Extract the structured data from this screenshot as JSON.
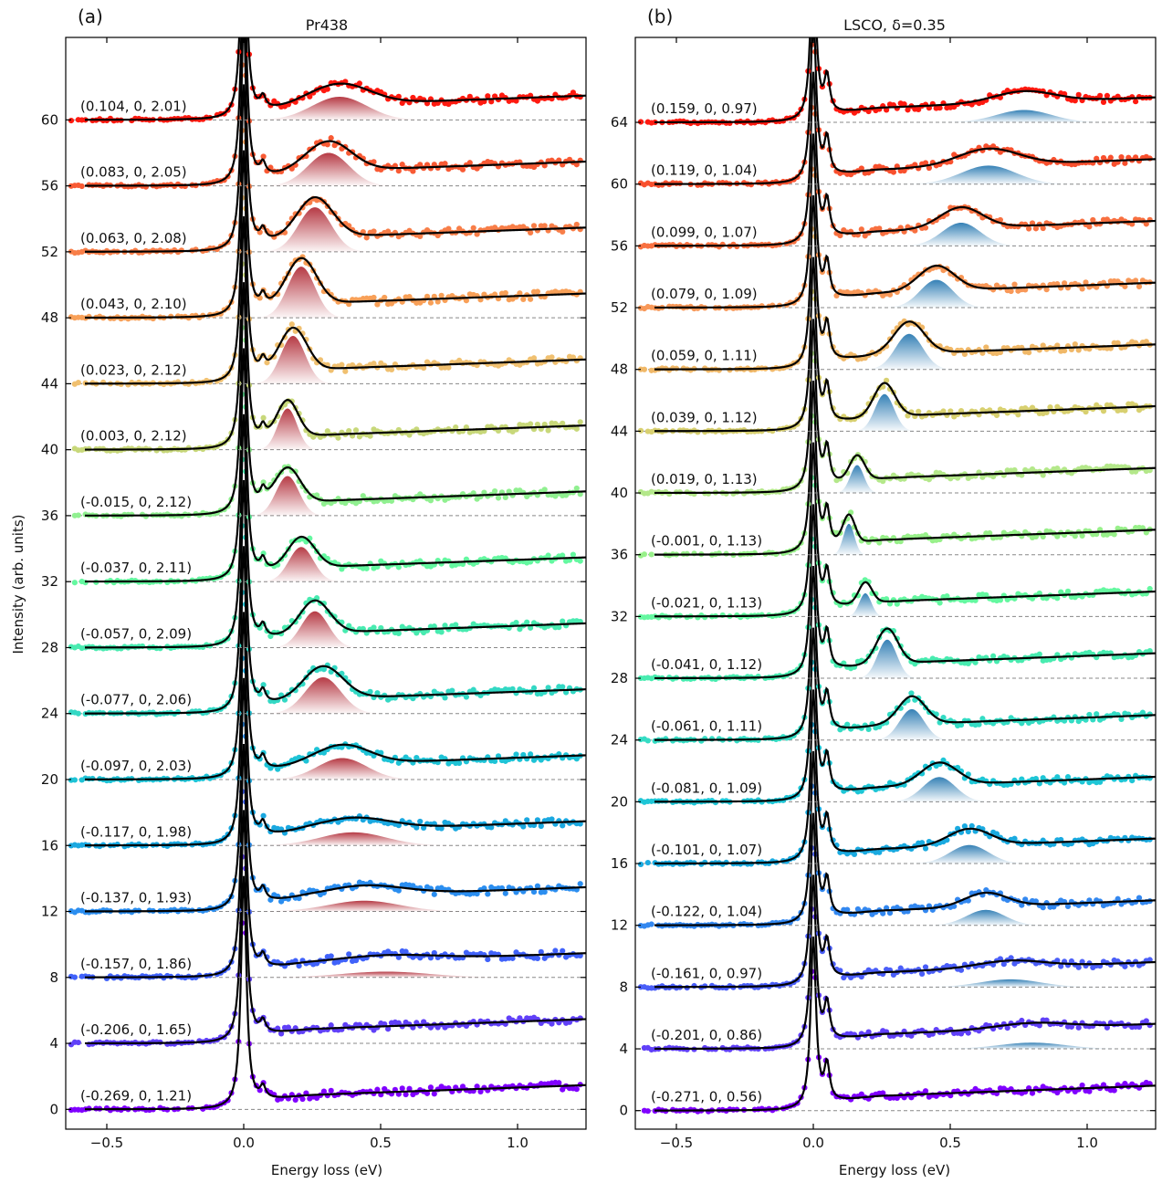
{
  "chart_data": [
    {
      "type": "line",
      "panel_letter": "(a)",
      "title": "Pr438",
      "xlabel": "Energy loss (eV)",
      "ylabel": "Intensity (arb. units)",
      "xlim": [
        -0.65,
        1.25
      ],
      "ylim": [
        -1.2,
        65
      ],
      "x_ticks": [
        -0.5,
        0.0,
        0.5,
        1.0
      ],
      "x_tick_labels": [
        "−0.5",
        "0.0",
        "0.5",
        "1.0"
      ],
      "y_ticks": [
        0,
        4,
        8,
        12,
        16,
        20,
        24,
        28,
        32,
        36,
        40,
        44,
        48,
        52,
        56,
        60
      ],
      "y_tick_labels": [
        "0",
        "4",
        "8",
        "12",
        "16",
        "20",
        "24",
        "28",
        "32",
        "36",
        "40",
        "44",
        "48",
        "52",
        "56",
        "60"
      ],
      "fill_color": "#b22f3a",
      "series": [
        {
          "label": "(-0.269, 0, 1.21)",
          "offset": 0,
          "color": "#8000ff",
          "mode_energy": null,
          "mode_amp": 0,
          "mode_width": 0
        },
        {
          "label": "(-0.206, 0, 1.65)",
          "offset": 4,
          "color": "#6040f8",
          "mode_energy": null,
          "mode_amp": 0,
          "mode_width": 0
        },
        {
          "label": "(-0.157, 0, 1.86)",
          "offset": 8,
          "color": "#4062fa",
          "mode_energy": 0.52,
          "mode_amp": 0.35,
          "mode_width": 0.16
        },
        {
          "label": "(-0.137, 0, 1.93)",
          "offset": 12,
          "color": "#2b8ef0",
          "mode_energy": 0.44,
          "mode_amp": 0.65,
          "mode_width": 0.13
        },
        {
          "label": "(-0.117, 0, 1.98)",
          "offset": 16,
          "color": "#1aa8e0",
          "mode_energy": 0.4,
          "mode_amp": 0.8,
          "mode_width": 0.12
        },
        {
          "label": "(-0.097, 0, 2.03)",
          "offset": 20,
          "color": "#1ec3d6",
          "mode_energy": 0.36,
          "mode_amp": 1.3,
          "mode_width": 0.09
        },
        {
          "label": "(-0.077, 0, 2.06)",
          "offset": 24,
          "color": "#33d8c4",
          "mode_energy": 0.29,
          "mode_amp": 2.2,
          "mode_width": 0.065
        },
        {
          "label": "(-0.057, 0, 2.09)",
          "offset": 28,
          "color": "#48ebb0",
          "mode_energy": 0.26,
          "mode_amp": 2.2,
          "mode_width": 0.05
        },
        {
          "label": "(-0.037, 0, 2.11)",
          "offset": 32,
          "color": "#64f8a0",
          "mode_energy": 0.21,
          "mode_amp": 2.1,
          "mode_width": 0.045
        },
        {
          "label": "(-0.015, 0, 2.12)",
          "offset": 36,
          "color": "#90f090",
          "mode_energy": 0.16,
          "mode_amp": 2.4,
          "mode_width": 0.042
        },
        {
          "label": "(0.003, 0, 2.12)",
          "offset": 40,
          "color": "#c8d87a",
          "mode_energy": 0.16,
          "mode_amp": 2.5,
          "mode_width": 0.035
        },
        {
          "label": "(0.023, 0, 2.12)",
          "offset": 44,
          "color": "#f0c070",
          "mode_energy": 0.18,
          "mode_amp": 2.9,
          "mode_width": 0.045
        },
        {
          "label": "(0.043, 0, 2.10)",
          "offset": 48,
          "color": "#f8a058",
          "mode_energy": 0.21,
          "mode_amp": 3.1,
          "mode_width": 0.05
        },
        {
          "label": "(0.063, 0, 2.08)",
          "offset": 52,
          "color": "#f87e48",
          "mode_energy": 0.26,
          "mode_amp": 2.7,
          "mode_width": 0.06
        },
        {
          "label": "(0.083, 0, 2.05)",
          "offset": 56,
          "color": "#f85a34",
          "mode_energy": 0.31,
          "mode_amp": 2.0,
          "mode_width": 0.075
        },
        {
          "label": "(0.104, 0, 2.01)",
          "offset": 60,
          "color": "#ff1a10",
          "mode_energy": 0.35,
          "mode_amp": 1.4,
          "mode_width": 0.1
        }
      ]
    },
    {
      "type": "line",
      "panel_letter": "(b)",
      "title": "LSCO, δ=0.35",
      "xlabel": "Energy loss (eV)",
      "ylabel": "",
      "xlim": [
        -0.65,
        1.25
      ],
      "ylim": [
        -1.2,
        69.5
      ],
      "x_ticks": [
        -0.5,
        0.0,
        0.5,
        1.0
      ],
      "x_tick_labels": [
        "−0.5",
        "0.0",
        "0.5",
        "1.0"
      ],
      "y_ticks": [
        0,
        4,
        8,
        12,
        16,
        20,
        24,
        28,
        32,
        36,
        40,
        44,
        48,
        52,
        56,
        60,
        64
      ],
      "y_tick_labels": [
        "0",
        "4",
        "8",
        "12",
        "16",
        "20",
        "24",
        "28",
        "32",
        "36",
        "40",
        "44",
        "48",
        "52",
        "56",
        "60",
        "64"
      ],
      "fill_color": "#2a7ab2",
      "series": [
        {
          "label": "(-0.271, 0, 0.56)",
          "offset": 0,
          "color": "#8000ff",
          "mode_energy": null,
          "mode_amp": 0,
          "mode_width": 0
        },
        {
          "label": "(-0.201, 0, 0.86)",
          "offset": 4,
          "color": "#6040f8",
          "mode_energy": 0.8,
          "mode_amp": 0.4,
          "mode_width": 0.12
        },
        {
          "label": "(-0.161, 0, 0.97)",
          "offset": 8,
          "color": "#4a5ef8",
          "mode_energy": 0.72,
          "mode_amp": 0.5,
          "mode_width": 0.11
        },
        {
          "label": "(-0.122, 0, 1.04)",
          "offset": 12,
          "color": "#3388f0",
          "mode_energy": 0.63,
          "mode_amp": 1.0,
          "mode_width": 0.07
        },
        {
          "label": "(-0.101, 0, 1.07)",
          "offset": 16,
          "color": "#1aaae0",
          "mode_energy": 0.57,
          "mode_amp": 1.2,
          "mode_width": 0.07
        },
        {
          "label": "(-0.081, 0, 1.09)",
          "offset": 20,
          "color": "#1ec6d6",
          "mode_energy": 0.46,
          "mode_amp": 1.6,
          "mode_width": 0.06
        },
        {
          "label": "(-0.061, 0, 1.11)",
          "offset": 24,
          "color": "#34dcc4",
          "mode_energy": 0.36,
          "mode_amp": 2.0,
          "mode_width": 0.045
        },
        {
          "label": "(-0.041, 0, 1.12)",
          "offset": 28,
          "color": "#48ecb0",
          "mode_energy": 0.27,
          "mode_amp": 2.5,
          "mode_width": 0.035
        },
        {
          "label": "(-0.021, 0, 1.13)",
          "offset": 32,
          "color": "#64f8a0",
          "mode_energy": 0.19,
          "mode_amp": 1.5,
          "mode_width": 0.022
        },
        {
          "label": "(-0.001, 0, 1.13)",
          "offset": 36,
          "color": "#98f08a",
          "mode_energy": 0.13,
          "mode_amp": 2.0,
          "mode_width": 0.02
        },
        {
          "label": "(0.019, 0, 1.13)",
          "offset": 40,
          "color": "#b4e88a",
          "mode_energy": 0.16,
          "mode_amp": 1.8,
          "mode_width": 0.025
        },
        {
          "label": "(0.039, 0, 1.12)",
          "offset": 44,
          "color": "#d8d070",
          "mode_energy": 0.26,
          "mode_amp": 2.4,
          "mode_width": 0.035
        },
        {
          "label": "(0.059, 0, 1.11)",
          "offset": 48,
          "color": "#f0b868",
          "mode_energy": 0.35,
          "mode_amp": 2.3,
          "mode_width": 0.05
        },
        {
          "label": "(0.079, 0, 1.09)",
          "offset": 52,
          "color": "#f89858",
          "mode_energy": 0.45,
          "mode_amp": 1.8,
          "mode_width": 0.06
        },
        {
          "label": "(0.099, 0, 1.07)",
          "offset": 56,
          "color": "#f87040",
          "mode_energy": 0.54,
          "mode_amp": 1.5,
          "mode_width": 0.07
        },
        {
          "label": "(0.119, 0, 1.04)",
          "offset": 60,
          "color": "#f8502e",
          "mode_energy": 0.64,
          "mode_amp": 1.2,
          "mode_width": 0.1
        },
        {
          "label": "(0.159, 0, 0.97)",
          "offset": 64,
          "color": "#ff1a10",
          "mode_energy": 0.77,
          "mode_amp": 0.8,
          "mode_width": 0.1
        }
      ]
    }
  ]
}
